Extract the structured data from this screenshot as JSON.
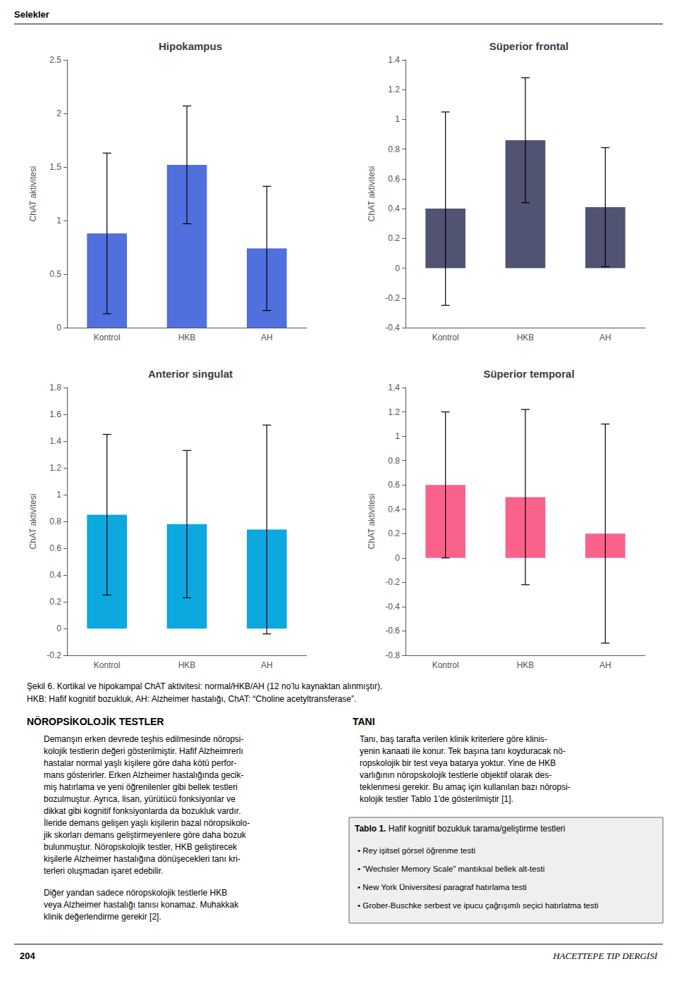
{
  "title": "Selekler",
  "chart_data": [
    {
      "type": "bar",
      "title": "Hipokampus",
      "ylabel": "ChAT aktivitesi",
      "categories": [
        "Kontrol",
        "HKB",
        "AH"
      ],
      "values": [
        0.88,
        1.52,
        0.74
      ],
      "errors": [
        0.75,
        0.55,
        0.58
      ],
      "ylim": [
        0,
        2.5
      ],
      "yticks": [
        0,
        0.5,
        1,
        1.5,
        2,
        2.5
      ],
      "grid": false
    },
    {
      "type": "bar",
      "title": "Süperior frontal",
      "ylabel": "ChAT aktivitesi",
      "categories": [
        "Kontrol",
        "HKB",
        "AH"
      ],
      "values": [
        0.4,
        0.86,
        0.41
      ],
      "errors": [
        0.65,
        0.42,
        0.4
      ],
      "ylim": [
        -0.4,
        1.4
      ],
      "yticks": [
        -0.4,
        -0.2,
        0,
        0.2,
        0.4,
        0.6,
        0.8,
        1,
        1.2,
        1.4
      ],
      "grid": false
    },
    {
      "type": "bar",
      "title": "Anterior singulat",
      "ylabel": "ChAT aktivitesi",
      "categories": [
        "Kontrol",
        "HKB",
        "AH"
      ],
      "values": [
        0.85,
        0.78,
        0.74
      ],
      "errors": [
        0.6,
        0.55,
        0.78
      ],
      "ylim": [
        -0.2,
        1.8
      ],
      "yticks": [
        -0.2,
        0,
        0.2,
        0.4,
        0.6,
        0.8,
        1,
        1.2,
        1.4,
        1.6,
        1.8
      ],
      "grid": false
    },
    {
      "type": "bar",
      "title": "Süperior temporal",
      "ylabel": "ChAT aktivitesi",
      "categories": [
        "Kontrol",
        "HKB",
        "AH"
      ],
      "values": [
        0.6,
        0.5,
        0.2
      ],
      "errors": [
        0.6,
        0.72,
        0.9
      ],
      "ylim": [
        -0.8,
        1.4
      ],
      "yticks": [
        -0.8,
        -0.6,
        -0.4,
        -0.2,
        0,
        0.2,
        0.4,
        0.6,
        0.8,
        1,
        1.2,
        1.4
      ],
      "grid": false
    }
  ],
  "annotations": [
    "Şekil 6. Kortikal ve hipokampal ChAT aktivitesi: normal/HKB/AH (12 no’lu kaynaktan alınmıştır).",
    "HKB: Hafif kognitif bozukluk, AH: Alzheimer hastalığı, ChAT: “Choline acetyltransferase”.",
    "NÖROPSİKOLOJİK TESTLER",
    "Demanşın erken devrede teşhis edilmesinde nöropsi-\nkolojik testlerin değeri gösterilmiştir. Hafif Alzheimrerlı\nhastalar normal yaşlı kişilere göre daha kötü perfor-\nmans gösterirler. Erken Alzheimer hastalığında gecik-\nmiş hatırlama ve yeni öğrenilenler gibi bellek testleri\nbozulmuştur. Ayrıca, lisan, yürütücü fonksiyonlar ve\ndikkat gibi kognitif fonksiyonlarda da bozukluk vardır.\nİleride demans gelişen yaşlı kişilerin bazal nöropsikolo-\njik skorları demans geliştirmeyenlere göre daha bozuk\nbulunmuştur. Nöropskolojik testler, HKB geliştirecek\nkişilerle Alzheimer hastalığına dönüşecekleri tanı kri-\nterleri oluşmadan işaret edebilir.",
    "Diğer yandan sadece nöropskolojik testlerle HKB\nveya Alzheimer hastalığı tanısı konamaz. Muhakkak\nklinik değerlendirme gerekir [2].",
    "TANI",
    "Tanı, baş tarafta verilen klinik kriterlere göre klinis-\nyenin kanaati ile konur. Tek başına tanı koyduracak nö-\nropskolojik bir test veya batarya yoktur. Yine de HKB\nvarlığının nöropskolojik testlerle objektif olarak des-\nteklenmesi gerekir. Bu amaç için kullanılan bazı nöropsi-\nkolojik testler Tablo 1’de gösterilmiştir [1].",
    "Tablo 1.",
    " Hafif kognitif bozukluk tarama/geliştirme testleri",
    "• Rey işitsel görsel öğrenme testi",
    "• “Wechsler Memory Scale” mantıksal bellek alt-testi",
    "• New York Üniversitesi paragraf hatırlama testi",
    "• Grober-Buschke serbest ve ipucu çağrışımlı seçici hatırlatma testi",
    "204",
    "HACETTEPE TIP DERGİSİ"
  ]
}
